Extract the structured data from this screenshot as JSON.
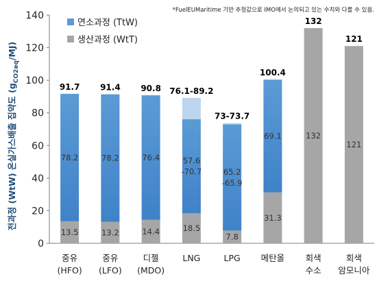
{
  "chart_data": {
    "type": "bar",
    "stacked": true,
    "note": "*FuelEUMaritime 기반 추정값으로 IMO에서 논의되고 있는 수치와 다를 수 있음.",
    "ylabel_main": "전과정 (WtW) 온실가스배출 집약도 (g",
    "ylabel_sub": "CO2eq",
    "ylabel_end": "/MJ)",
    "ylim": [
      0,
      140
    ],
    "yticks": [
      0,
      20,
      40,
      60,
      80,
      100,
      120,
      140
    ],
    "grid": false,
    "legend_position": "top-left",
    "categories": [
      [
        "중유",
        "(HFO)"
      ],
      [
        "중유",
        "(LFO)"
      ],
      [
        "디젤",
        "(MDO)"
      ],
      [
        "LNG"
      ],
      [
        "LPG"
      ],
      [
        "메탄올"
      ],
      [
        "회색",
        "수소"
      ],
      [
        "회색",
        "암모니아"
      ]
    ],
    "series": [
      {
        "name": "생산과정 (WtT)",
        "color": "#a6a6a6",
        "values": [
          13.5,
          13.2,
          14.4,
          18.5,
          7.8,
          31.3,
          132,
          121
        ],
        "labels": [
          [
            "13.5"
          ],
          [
            "13.2"
          ],
          [
            "14.4"
          ],
          [
            "18.5"
          ],
          [
            "7.8"
          ],
          [
            "31.3"
          ],
          [
            "132"
          ],
          [
            "121"
          ]
        ]
      },
      {
        "name": "연소과정 (TtW)",
        "color": "#5b9bd5",
        "values": [
          78.2,
          78.2,
          76.4,
          57.6,
          65.2,
          69.1,
          0,
          0
        ],
        "range_max": [
          null,
          null,
          null,
          70.7,
          65.9,
          null,
          null,
          null
        ],
        "labels": [
          [
            "78.2"
          ],
          [
            "78.2"
          ],
          [
            "76.4"
          ],
          [
            "57.6",
            "-70.7"
          ],
          [
            "65.2",
            "-65.9"
          ],
          [
            "69.1"
          ],
          [],
          []
        ]
      }
    ],
    "totals": [
      "91.7",
      "91.4",
      "90.8",
      "76.1-89.2",
      "73-73.7",
      "100.4",
      "132",
      "121"
    ],
    "colors": {
      "wtt": "#a6a6a6",
      "ttw_top": "#5b9bd5",
      "ttw_bottom": "#3f82c8",
      "range": "#bcd6ee",
      "axis": "#7f7f7f"
    }
  }
}
